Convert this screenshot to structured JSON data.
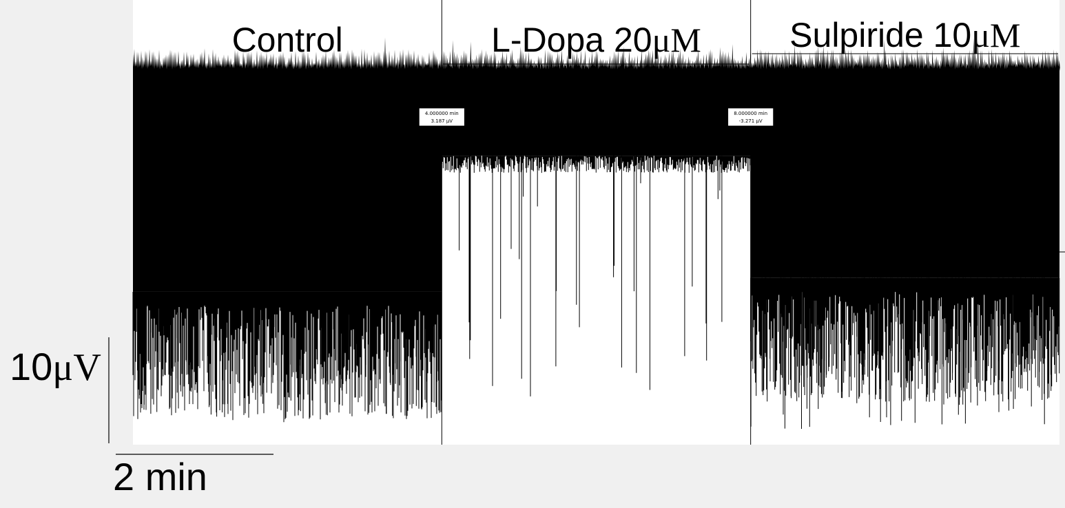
{
  "chart_data": {
    "type": "line",
    "title": "",
    "xlabel": "",
    "ylabel": "",
    "conditions": [
      {
        "name": "Control",
        "name_prefix": "Control",
        "unit": "",
        "start_min": 0,
        "end_min": 4
      },
      {
        "name": "L-Dopa 20μM",
        "name_prefix": "L-Dopa 20",
        "unit": "μM",
        "start_min": 4,
        "end_min": 8
      },
      {
        "name": "Sulpiride 10μM",
        "name_prefix": "Sulpiride 10",
        "unit": "μM",
        "start_min": 8,
        "end_min": 12
      }
    ],
    "cursors": [
      {
        "time_label": "4.000000 min",
        "value_label": "3.187 μV",
        "time_min": 4,
        "value_uv": 3.187
      },
      {
        "time_label": "8.000000 min",
        "value_label": "-3.271 μV",
        "time_min": 8,
        "value_uv": -3.271
      }
    ],
    "scale_bars": {
      "voltage": {
        "value": 10,
        "number": "10",
        "unit": "μV"
      },
      "time": {
        "value": 2,
        "label": "2 min"
      }
    },
    "x_range_min": [
      0,
      12
    ],
    "y_range_uv": [
      -12,
      4
    ],
    "envelope": {
      "upper_uv": 1.5,
      "dense_lower_uv": {
        "Control": -6.5,
        "L-Dopa 20μM": -1.6,
        "Sulpiride 10μM": -6.0
      },
      "spike_min_uv": {
        "Control": -11.0,
        "L-Dopa 20μM": -10.5,
        "Sulpiride 10μM": -11.5
      }
    },
    "trace_color": "#000000",
    "background_color": "#ffffff"
  }
}
